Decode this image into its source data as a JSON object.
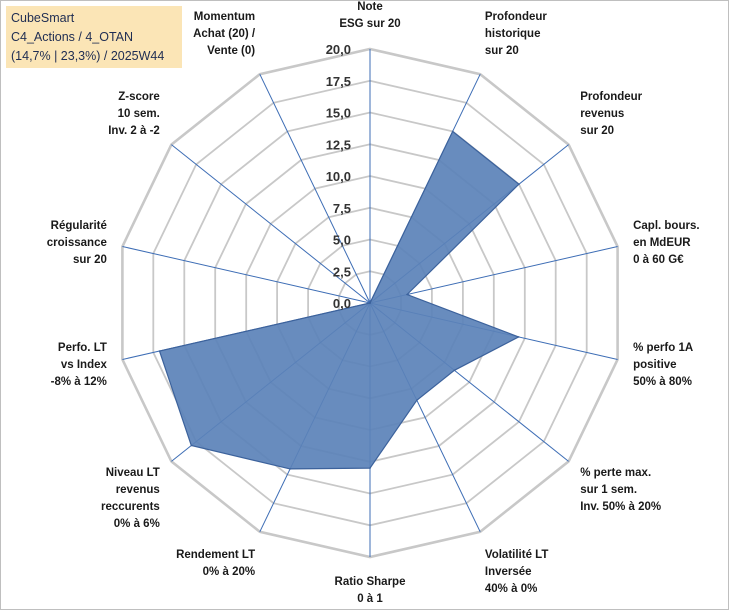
{
  "title_box": {
    "line1": "CubeSmart",
    "line2": "C4_Actions / 4_OTAN",
    "line3": "(14,7% | 23,3%) / 2025W44"
  },
  "chart_data": {
    "type": "radar",
    "rmin": 0,
    "rmax": 20,
    "ticks": [
      "0,0",
      "2,5",
      "5,0",
      "7,5",
      "10,0",
      "12,5",
      "15,0",
      "17,5",
      "20,0"
    ],
    "axes": [
      {
        "label": [
          "Note",
          "ESG sur 20"
        ],
        "value": 0.0
      },
      {
        "label": [
          "Profondeur",
          "historique",
          "sur 20"
        ],
        "value": 15.0
      },
      {
        "label": [
          "Profondeur",
          "revenus",
          "sur 20"
        ],
        "value": 15.0
      },
      {
        "label": [
          "Capl. bours.",
          "en MdEUR",
          "0 à 60 G€"
        ],
        "value": 3.0
      },
      {
        "label": [
          "% perfo 1A",
          "positive",
          "50% à 80%"
        ],
        "value": 12.0
      },
      {
        "label": [
          "% perte max.",
          "sur 1 sem.",
          "Inv. 50% à 20%"
        ],
        "value": 8.5
      },
      {
        "label": [
          "Volatilité LT",
          "Inversée",
          "40% à 0%"
        ],
        "value": 8.5
      },
      {
        "label": [
          "Ratio Sharpe",
          "0 à 1"
        ],
        "value": 13.0
      },
      {
        "label": [
          "Rendement LT",
          "0% à 20%"
        ],
        "value": 14.5
      },
      {
        "label": [
          "Niveau LT",
          "revenus",
          "reccurents",
          "0% à 6%"
        ],
        "value": 18.0
      },
      {
        "label": [
          "Perfo. LT",
          "vs Index",
          "-8% à 12%"
        ],
        "value": 17.0
      },
      {
        "label": [
          "Régularité",
          "croissance",
          "sur 20"
        ],
        "value": 0.0
      },
      {
        "label": [
          "Z-score",
          "10 sem.",
          "Inv. 2 à -2"
        ],
        "value": 0.0
      },
      {
        "label": [
          "Momentum",
          "Achat (20) /",
          "Vente (0)"
        ],
        "value": 0.0
      }
    ],
    "colors": {
      "fill": "#5b82b8",
      "stroke": "#3c629c",
      "grid": "#c8c8c8",
      "spoke": "#3d6db5"
    }
  }
}
